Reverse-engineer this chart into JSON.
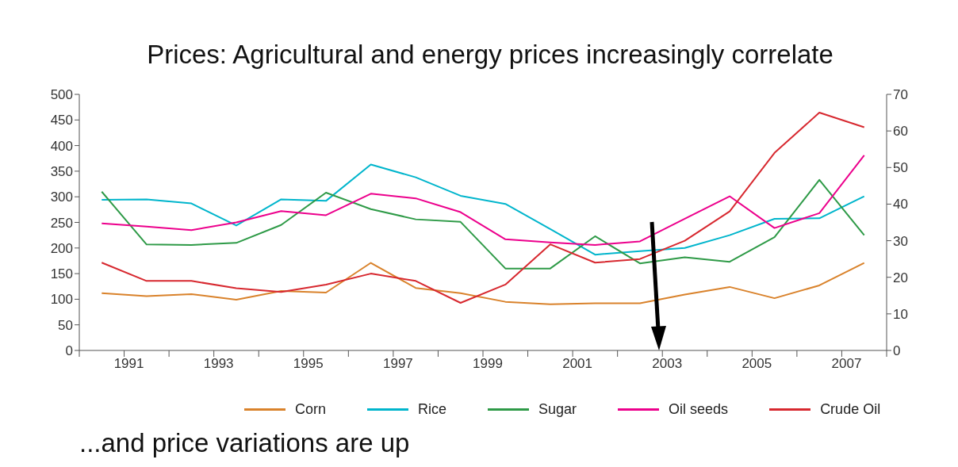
{
  "chart_data": {
    "type": "line",
    "title": "Prices: Agricultural and energy prices increasingly correlate",
    "x": [
      1990.5,
      1991.5,
      1992.5,
      1993.5,
      1994.5,
      1995.5,
      1996.5,
      1997.5,
      1998.5,
      1999.5,
      2000.5,
      2001.5,
      2002.5,
      2003.5,
      2004.5,
      2005.5,
      2006.5,
      2007.5
    ],
    "series": [
      {
        "name": "Corn",
        "color": "#d9822b",
        "values": [
          112,
          106,
          110,
          99,
          116,
          113,
          171,
          122,
          112,
          95,
          90,
          92,
          92,
          109,
          124,
          102,
          127,
          171
        ]
      },
      {
        "name": "Rice",
        "color": "#00b5cc",
        "values": [
          294,
          295,
          287,
          244,
          295,
          292,
          363,
          338,
          302,
          286,
          237,
          187,
          194,
          200,
          225,
          257,
          258,
          301
        ]
      },
      {
        "name": "Sugar",
        "color": "#2e9a47",
        "values": [
          310,
          207,
          206,
          210,
          245,
          308,
          276,
          256,
          251,
          160,
          160,
          223,
          170,
          182,
          173,
          221,
          333,
          225
        ]
      },
      {
        "name": "Oil seeds",
        "color": "#ec008c",
        "values": [
          248,
          242,
          235,
          250,
          272,
          264,
          306,
          297,
          270,
          217,
          211,
          206,
          213,
          257,
          301,
          239,
          268,
          381
        ]
      },
      {
        "name": "Crude Oil",
        "color": "#d7282f",
        "axis": "y2",
        "values": [
          24,
          19,
          19,
          17,
          16,
          18,
          21,
          19,
          13,
          18,
          29,
          24,
          25,
          30,
          38,
          54,
          65,
          61
        ]
      }
    ],
    "xlim": [
      1990,
      2008
    ],
    "xticks": [
      {
        "value": 1990,
        "label": null
      },
      1991,
      {
        "value": 1992,
        "label": null
      },
      1993,
      {
        "value": 1994,
        "label": null
      },
      1995,
      {
        "value": 1996,
        "label": null
      },
      1997,
      {
        "value": 1998,
        "label": null
      },
      1999,
      {
        "value": 2000,
        "label": null
      },
      2001,
      {
        "value": 2002,
        "label": null
      },
      2003,
      {
        "value": 2004,
        "label": null
      },
      2005,
      {
        "value": 2006,
        "label": null
      },
      2007,
      {
        "value": 2008,
        "label": null
      }
    ],
    "ylim": [
      0,
      500
    ],
    "yticks": [
      0,
      50,
      100,
      150,
      200,
      250,
      300,
      350,
      400,
      450,
      500
    ],
    "y2lim": [
      0,
      70
    ],
    "y2ticks": [
      0,
      10,
      20,
      30,
      40,
      50,
      60,
      70
    ],
    "grid": false,
    "legend": "bottom",
    "marker": "none",
    "line_style": "solid",
    "annotations": [
      "...and price variations are up"
    ]
  }
}
